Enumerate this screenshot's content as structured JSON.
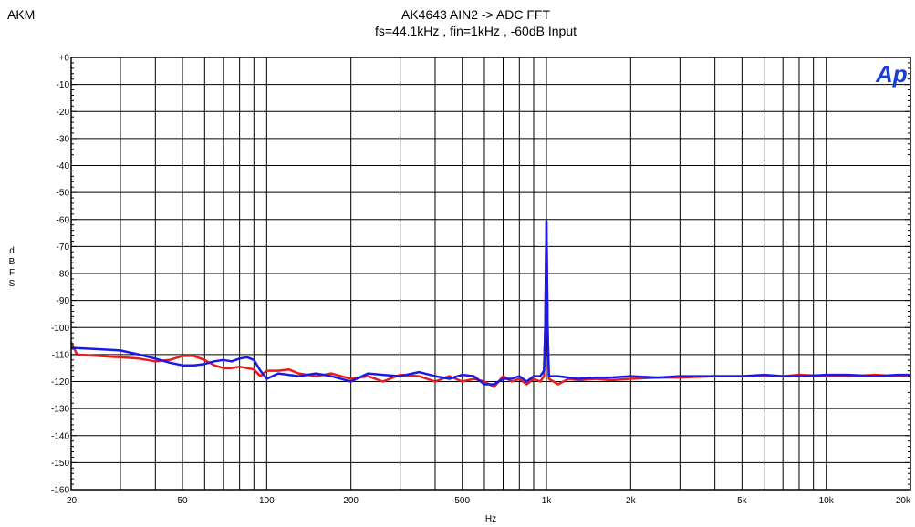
{
  "brand": "AKM",
  "logo_text": "Ap",
  "chart_data": {
    "type": "line",
    "title": "AK4643  AIN2 -> ADC    FFT",
    "subtitle": "fs=44.1kHz , fin=1kHz , -60dB Input",
    "xlabel": "Hz",
    "ylabel": "dBFS",
    "x_scale": "log",
    "xlim": [
      20,
      20000
    ],
    "ylim": [
      -160,
      0
    ],
    "x_ticks": [
      20,
      50,
      100,
      200,
      500,
      1000,
      2000,
      5000,
      10000,
      20000
    ],
    "x_tick_labels": [
      "20",
      "50",
      "100",
      "200",
      "500",
      "1k",
      "2k",
      "5k",
      "10k",
      "20k"
    ],
    "y_ticks": [
      0,
      -10,
      -20,
      -30,
      -40,
      -50,
      -60,
      -70,
      -80,
      -90,
      -100,
      -110,
      -120,
      -130,
      -140,
      -150,
      -160
    ],
    "y_tick_labels": [
      "+0",
      "-10",
      "-20",
      "-30",
      "-40",
      "-50",
      "-60",
      "-70",
      "-80",
      "-90",
      "-100",
      "-110",
      "-120",
      "-130",
      "-140",
      "-150",
      "-160"
    ],
    "grid": true,
    "series": [
      {
        "color": "#e81c1c",
        "points": [
          [
            20,
            -105.5
          ],
          [
            21,
            -110
          ],
          [
            25,
            -110.5
          ],
          [
            30,
            -111
          ],
          [
            35,
            -111.5
          ],
          [
            40,
            -112.5
          ],
          [
            45,
            -112
          ],
          [
            50,
            -110.5
          ],
          [
            55,
            -110.5
          ],
          [
            60,
            -112
          ],
          [
            65,
            -114
          ],
          [
            70,
            -115
          ],
          [
            75,
            -115
          ],
          [
            80,
            -114.5
          ],
          [
            90,
            -115.5
          ],
          [
            95,
            -118
          ],
          [
            100,
            -116
          ],
          [
            110,
            -116
          ],
          [
            120,
            -115.5
          ],
          [
            130,
            -117
          ],
          [
            150,
            -118
          ],
          [
            170,
            -117
          ],
          [
            200,
            -119
          ],
          [
            230,
            -118
          ],
          [
            260,
            -120
          ],
          [
            300,
            -117.5
          ],
          [
            350,
            -118
          ],
          [
            400,
            -120
          ],
          [
            450,
            -118
          ],
          [
            500,
            -120
          ],
          [
            550,
            -119
          ],
          [
            600,
            -120
          ],
          [
            650,
            -122
          ],
          [
            700,
            -118
          ],
          [
            750,
            -120
          ],
          [
            800,
            -119
          ],
          [
            850,
            -121
          ],
          [
            900,
            -119
          ],
          [
            950,
            -120
          ],
          [
            980,
            -118
          ],
          [
            990,
            -100
          ],
          [
            1000,
            -61
          ],
          [
            1010,
            -100
          ],
          [
            1020,
            -119
          ],
          [
            1100,
            -121
          ],
          [
            1200,
            -119
          ],
          [
            1300,
            -119.5
          ],
          [
            1500,
            -119
          ],
          [
            1700,
            -119.5
          ],
          [
            2000,
            -119
          ],
          [
            2500,
            -118.5
          ],
          [
            3000,
            -118.5
          ],
          [
            4000,
            -118
          ],
          [
            5000,
            -118
          ],
          [
            6000,
            -118
          ],
          [
            7000,
            -118
          ],
          [
            8000,
            -117.5
          ],
          [
            10000,
            -118
          ],
          [
            12000,
            -118
          ],
          [
            15000,
            -117.5
          ],
          [
            18000,
            -118
          ],
          [
            20000,
            -117.5
          ]
        ]
      },
      {
        "color": "#1a1ae8",
        "points": [
          [
            20,
            -107.5
          ],
          [
            25,
            -108
          ],
          [
            30,
            -108.5
          ],
          [
            35,
            -110
          ],
          [
            40,
            -111.5
          ],
          [
            45,
            -113
          ],
          [
            50,
            -114
          ],
          [
            55,
            -114
          ],
          [
            60,
            -113.5
          ],
          [
            65,
            -112.5
          ],
          [
            70,
            -112
          ],
          [
            75,
            -112.5
          ],
          [
            80,
            -111.5
          ],
          [
            85,
            -111
          ],
          [
            90,
            -112
          ],
          [
            95,
            -116
          ],
          [
            100,
            -119
          ],
          [
            110,
            -117
          ],
          [
            120,
            -117.5
          ],
          [
            130,
            -118
          ],
          [
            150,
            -117
          ],
          [
            170,
            -118
          ],
          [
            200,
            -120
          ],
          [
            230,
            -117
          ],
          [
            260,
            -117.5
          ],
          [
            300,
            -118
          ],
          [
            350,
            -116.5
          ],
          [
            400,
            -118
          ],
          [
            450,
            -119
          ],
          [
            500,
            -117.5
          ],
          [
            550,
            -118
          ],
          [
            600,
            -121
          ],
          [
            650,
            -121
          ],
          [
            700,
            -119
          ],
          [
            750,
            -119
          ],
          [
            800,
            -118
          ],
          [
            850,
            -120
          ],
          [
            900,
            -118
          ],
          [
            950,
            -118
          ],
          [
            980,
            -116
          ],
          [
            990,
            -100
          ],
          [
            1000,
            -60.5
          ],
          [
            1010,
            -100
          ],
          [
            1020,
            -118
          ],
          [
            1100,
            -118
          ],
          [
            1200,
            -118.5
          ],
          [
            1300,
            -119
          ],
          [
            1500,
            -118.5
          ],
          [
            1700,
            -118.5
          ],
          [
            2000,
            -118
          ],
          [
            2500,
            -118.5
          ],
          [
            3000,
            -118
          ],
          [
            4000,
            -118
          ],
          [
            5000,
            -118
          ],
          [
            6000,
            -117.5
          ],
          [
            7000,
            -118
          ],
          [
            8000,
            -118
          ],
          [
            10000,
            -117.5
          ],
          [
            12000,
            -117.5
          ],
          [
            15000,
            -118
          ],
          [
            18000,
            -117.5
          ],
          [
            20000,
            -117.5
          ]
        ]
      }
    ]
  }
}
